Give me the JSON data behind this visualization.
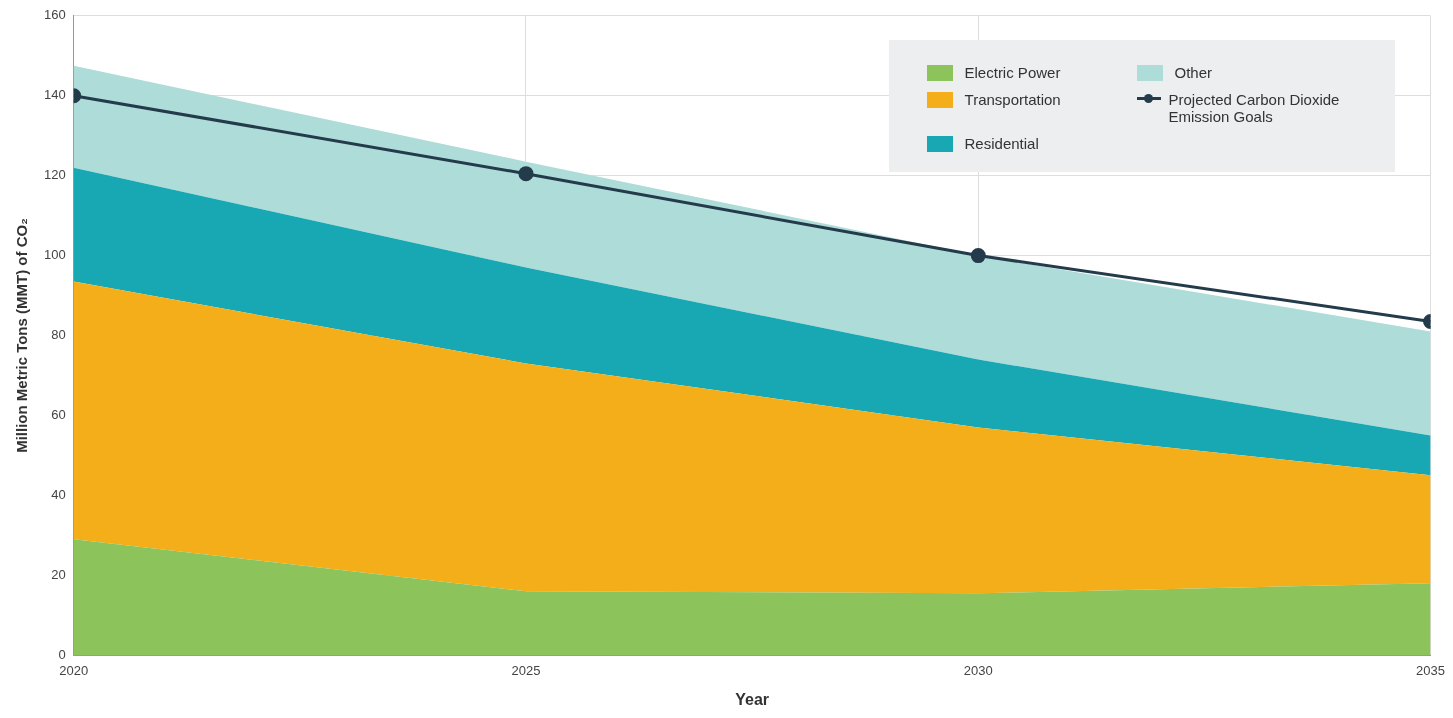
{
  "chart_data": {
    "type": "area",
    "xlabel": "Year",
    "ylabel": "Million Metric Tons (MMT) of CO₂",
    "x": [
      2020,
      2025,
      2030,
      2035
    ],
    "xlim": [
      2020,
      2035
    ],
    "xticks": [
      2020,
      2025,
      2030,
      2035
    ],
    "ylim": [
      0,
      160
    ],
    "yticks": [
      0,
      20,
      40,
      60,
      80,
      100,
      120,
      140,
      160
    ],
    "stacked": true,
    "grid": true,
    "legend": "top right",
    "series": [
      {
        "name": "Electric Power",
        "color": "#8cc35b",
        "values": [
          29,
          16,
          15.5,
          18
        ]
      },
      {
        "name": "Transportation",
        "color": "#f3ae19",
        "values": [
          64.5,
          57,
          41.5,
          27
        ]
      },
      {
        "name": "Residential",
        "color": "#17a8b3",
        "values": [
          28.5,
          24,
          17,
          10
        ]
      },
      {
        "name": "Other",
        "color": "#aedcd8",
        "values": [
          25.5,
          26.5,
          26,
          26
        ]
      },
      {
        "name": "Projected Carbon Dioxide Emission Goals",
        "type": "line",
        "marker": "circle",
        "color": "#243b4c",
        "values": [
          140,
          120.5,
          100,
          83.5
        ]
      }
    ]
  }
}
